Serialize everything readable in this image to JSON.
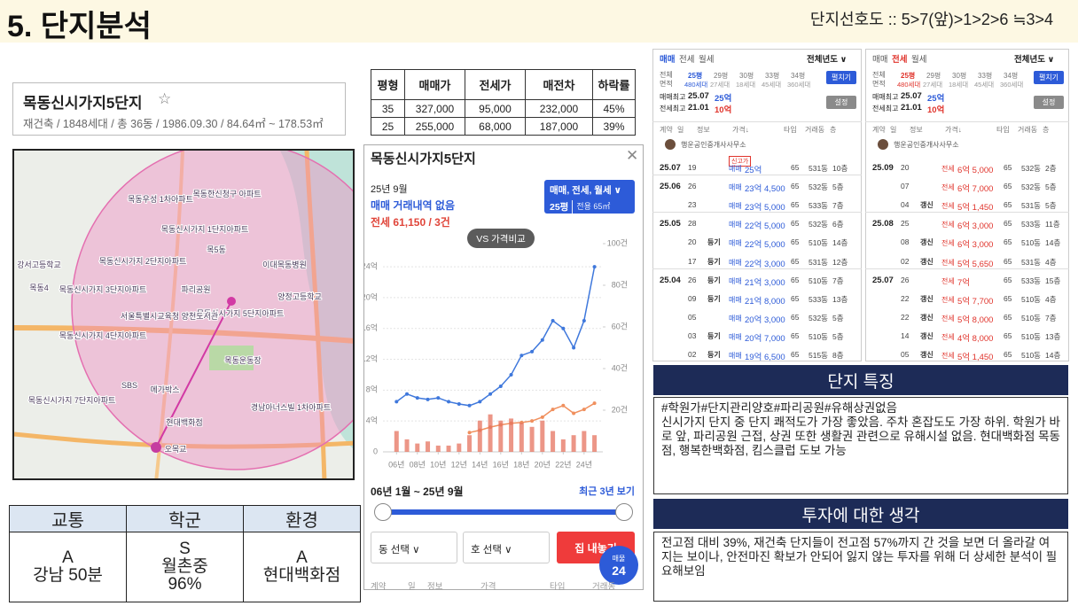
{
  "header": {
    "title": "5. 단지분석",
    "preference": "단지선호도 :: 5>7(앞)>1>2>6 ≒3>4"
  },
  "complex": {
    "name": "목동신시가지5단지",
    "star": "☆",
    "summary": "재건축 / 1848세대 / 총 36동 / 1986.09.30 / 84.64㎡ ~ 178.53㎡"
  },
  "price_table": {
    "columns": [
      "평형",
      "매매가",
      "전세가",
      "매전차",
      "하락률"
    ],
    "rows": [
      [
        "35",
        "327,000",
        "95,000",
        "232,000",
        "45%"
      ],
      [
        "25",
        "255,000",
        "68,000",
        "187,000",
        "39%"
      ]
    ]
  },
  "map": {
    "labels": [
      "목동신시가지 1단지아파트",
      "목동신시가지 2단지아파트",
      "목동신시가지 3단지아파트",
      "목동신시가지 4단지아파트",
      "목동신시가지 5단지아파트",
      "목동신시가지 7단지아파트",
      "목동우성 1차아파트",
      "목동한신청구 아파트",
      "목5동",
      "목동4",
      "이대목동병원",
      "양정고등학교",
      "파리공원",
      "서울특별시교육청 양천도서관",
      "강서고등학교",
      "SBS",
      "메가박스",
      "현대백화점",
      "경남아너스빌 1차아파트",
      "오목교",
      "목동운동장"
    ]
  },
  "rating_table": {
    "columns": [
      "교통",
      "학군",
      "환경"
    ],
    "cells": [
      [
        "A",
        "강남 50분"
      ],
      [
        "S",
        "월촌중",
        "96%"
      ],
      [
        "A",
        "현대백화점"
      ]
    ]
  },
  "price_panel": {
    "title": "목동신시가지5단지",
    "close": "✕",
    "month": "25년 9월",
    "sale_status": "매매 거래내역 없음",
    "jeonse_status": "전세 61,150 / 3건",
    "filter": "매매, 전세, 월세 ∨",
    "size": "25평",
    "exclusive": "전용 65㎡",
    "compare": "VS 가격비교",
    "range": "06년 1월 ~ 25년 9월",
    "recent": "최근 3년 보기",
    "dong_select": "동 선택 ∨",
    "ho_select": "호 선택 ∨",
    "sell_button": "집 내놓기",
    "listing_label": "매물",
    "listing_count": "24",
    "columns": [
      "계약",
      "일",
      "정보",
      "가격",
      "타입",
      "거래동"
    ]
  },
  "chart_data": {
    "type": "line",
    "x": [
      2006,
      2007,
      2008,
      2009,
      2010,
      2011,
      2012,
      2013,
      2014,
      2015,
      2016,
      2017,
      2018,
      2019,
      2020,
      2021,
      2022,
      2023,
      2024,
      2025
    ],
    "series": [
      {
        "color": "#3f78dc",
        "values": [
          6.5,
          7.5,
          7,
          6.8,
          7,
          6.5,
          6.2,
          6,
          6.5,
          7.5,
          8.5,
          10,
          12.5,
          13,
          14.5,
          17,
          16,
          13.5,
          17,
          24
        ]
      },
      {
        "color": "#f0905e",
        "values": [
          null,
          null,
          null,
          null,
          null,
          null,
          null,
          2.5,
          2.8,
          3.2,
          3.5,
          3.7,
          3.8,
          4,
          4.5,
          5.5,
          6,
          5,
          5.5,
          6.3
        ]
      },
      {
        "type": "bar",
        "axis": "y2",
        "color": "#e5735f",
        "values": [
          10,
          6,
          4,
          5,
          3,
          3,
          4,
          8,
          15,
          18,
          15,
          16,
          14,
          12,
          15,
          10,
          6,
          8,
          10,
          8
        ]
      }
    ],
    "xlim": [
      2004.7,
      2025.8
    ],
    "xticks": [
      {
        "value": 2006,
        "label": "06년"
      },
      {
        "value": 2008,
        "label": "08년"
      },
      {
        "value": 2010,
        "label": "10년"
      },
      {
        "value": 2012,
        "label": "12년"
      },
      {
        "value": 2014,
        "label": "14년"
      },
      {
        "value": 2016,
        "label": "16년"
      },
      {
        "value": 2018,
        "label": "18년"
      },
      {
        "value": 2020,
        "label": "20년"
      },
      {
        "value": 2022,
        "label": "22년"
      },
      {
        "value": 2024,
        "label": "24년"
      }
    ],
    "ylim": [
      0,
      27
    ],
    "yticks": [
      0,
      {
        "value": 4,
        "label": "4억"
      },
      {
        "value": 8,
        "label": "8억"
      },
      {
        "value": 12,
        "label": "12억"
      },
      {
        "value": 16,
        "label": "16억"
      },
      {
        "value": 20,
        "label": "20억"
      },
      {
        "value": 24,
        "label": "24억"
      }
    ],
    "y2lim": [
      0,
      100
    ],
    "y2ticks": [
      {
        "value": 20,
        "label": "20건"
      },
      {
        "value": 40,
        "label": "40건"
      },
      {
        "value": 60,
        "label": "60건"
      },
      {
        "value": 80,
        "label": "80건"
      },
      {
        "value": 100,
        "label": "100건"
      }
    ],
    "grid": true
  },
  "trade_lists": [
    {
      "tabs": [
        "매매",
        "전세",
        "월세"
      ],
      "year_filter": "전체년도 ∨",
      "area_all": "전체\n면적",
      "areas": [
        [
          "25평",
          "480세대"
        ],
        [
          "29평",
          "27세대"
        ],
        [
          "30평",
          "18세대"
        ],
        [
          "33평",
          "45세대"
        ],
        [
          "34평",
          "360세대"
        ]
      ],
      "expand": "펼치기",
      "max_sale": [
        "매매최고",
        "25.07",
        "25억"
      ],
      "max_jeonse": [
        "전세최고",
        "21.01",
        "10억"
      ],
      "settings": "설정",
      "columns": [
        "계약",
        "일",
        "정보",
        "가격↓",
        "타입",
        "거래동",
        "층"
      ],
      "agent": "행운공인중개사사무소",
      "rows": [
        {
          "month": "25.07",
          "day": "19",
          "badge": "신고가",
          "type": "매매",
          "price": "25억",
          "area": "65",
          "dong": "531동",
          "floor": "10층"
        },
        {
          "month": "25.06",
          "day": "26",
          "type": "매매",
          "price": "23억 4,500",
          "area": "65",
          "dong": "532동",
          "floor": "5층"
        },
        {
          "day": "23",
          "type": "매매",
          "price": "23억 5,000",
          "area": "65",
          "dong": "533동",
          "floor": "7층"
        },
        {
          "month": "25.05",
          "day": "28",
          "type": "매매",
          "price": "22억 5,000",
          "area": "65",
          "dong": "532동",
          "floor": "6층"
        },
        {
          "day": "20",
          "info": "등기",
          "type": "매매",
          "price": "22억 5,000",
          "area": "65",
          "dong": "510동",
          "floor": "14층"
        },
        {
          "day": "17",
          "info": "등기",
          "type": "매매",
          "price": "22억 3,000",
          "area": "65",
          "dong": "531동",
          "floor": "12층"
        },
        {
          "month": "25.04",
          "day": "26",
          "info": "등기",
          "type": "매매",
          "price": "21억 3,000",
          "area": "65",
          "dong": "510동",
          "floor": "7층"
        },
        {
          "day": "09",
          "info": "등기",
          "type": "매매",
          "price": "21억 8,000",
          "area": "65",
          "dong": "533동",
          "floor": "13층"
        },
        {
          "day": "05",
          "type": "매매",
          "price": "20억 3,000",
          "area": "65",
          "dong": "532동",
          "floor": "5층"
        },
        {
          "day": "03",
          "info": "등기",
          "type": "매매",
          "price": "20억 7,000",
          "area": "65",
          "dong": "510동",
          "floor": "5층"
        },
        {
          "day": "02",
          "info": "등기",
          "type": "매매",
          "price": "19억 6,500",
          "area": "65",
          "dong": "515동",
          "floor": "8층"
        }
      ]
    },
    {
      "tabs": [
        "매매",
        "전세",
        "월세"
      ],
      "year_filter": "전체년도 ∨",
      "area_all": "전체\n면적",
      "areas": [
        [
          "25평",
          "480세대"
        ],
        [
          "29평",
          "27세대"
        ],
        [
          "30평",
          "18세대"
        ],
        [
          "33평",
          "45세대"
        ],
        [
          "34평",
          "360세대"
        ]
      ],
      "expand": "펼치기",
      "max_sale": [
        "매매최고",
        "25.07",
        "25억"
      ],
      "max_jeonse": [
        "전세최고",
        "21.01",
        "10억"
      ],
      "settings": "설정",
      "columns": [
        "계약",
        "일",
        "정보",
        "가격↓",
        "타입",
        "거래동",
        "층"
      ],
      "agent": "행운공인중개사사무소",
      "rows": [
        {
          "month": "25.09",
          "day": "20",
          "type": "전세",
          "price": "6억 5,000",
          "area": "65",
          "dong": "532동",
          "floor": "2층"
        },
        {
          "day": "07",
          "type": "전세",
          "price": "6억 7,000",
          "area": "65",
          "dong": "532동",
          "floor": "5층"
        },
        {
          "day": "04",
          "info": "갱신",
          "type": "전세",
          "price": "5억 1,450",
          "area": "65",
          "dong": "531동",
          "floor": "5층"
        },
        {
          "month": "25.08",
          "day": "25",
          "type": "전세",
          "price": "6억 3,000",
          "area": "65",
          "dong": "533동",
          "floor": "11층"
        },
        {
          "day": "08",
          "info": "갱신",
          "type": "전세",
          "price": "6억 3,000",
          "area": "65",
          "dong": "510동",
          "floor": "14층"
        },
        {
          "day": "02",
          "info": "갱신",
          "type": "전세",
          "price": "5억 5,650",
          "area": "65",
          "dong": "531동",
          "floor": "4층"
        },
        {
          "month": "25.07",
          "day": "26",
          "type": "전세",
          "price": "7억",
          "area": "65",
          "dong": "533동",
          "floor": "15층"
        },
        {
          "day": "22",
          "info": "갱신",
          "type": "전세",
          "price": "5억 7,700",
          "area": "65",
          "dong": "510동",
          "floor": "4층"
        },
        {
          "day": "22",
          "info": "갱신",
          "type": "전세",
          "price": "5억 8,000",
          "area": "65",
          "dong": "510동",
          "floor": "7층"
        },
        {
          "day": "14",
          "info": "갱신",
          "type": "전세",
          "price": "4억 8,000",
          "area": "65",
          "dong": "510동",
          "floor": "13층"
        },
        {
          "day": "05",
          "info": "갱신",
          "type": "전세",
          "price": "5억 1,450",
          "area": "65",
          "dong": "510동",
          "floor": "14층"
        }
      ]
    }
  ],
  "features": {
    "title": "단지 특징",
    "text": "#학원가#단지관리양호#파리공원#유해상권없음\n신시가지 단지 중 단지 쾌적도가 가장 좋았음. 주차 혼잡도도 가장 하위. 학원가 바로 앞, 파리공원 근접, 상권 또한 생활권 관련으로 유해시설 없음. 현대백화점 목동점, 행복한백화점, 킴스클럽 도보 가능"
  },
  "thoughts": {
    "title": "투자에 대한 생각",
    "text": "전고점 대비 39%, 재건축 단지들이 전고점 57%까지 간 것을 보면 더 올라갈 여지는 보이나, 안전마진 확보가 안되어 잃지 않는 투자를 위해 더 상세한 분석이 필요해보임"
  }
}
